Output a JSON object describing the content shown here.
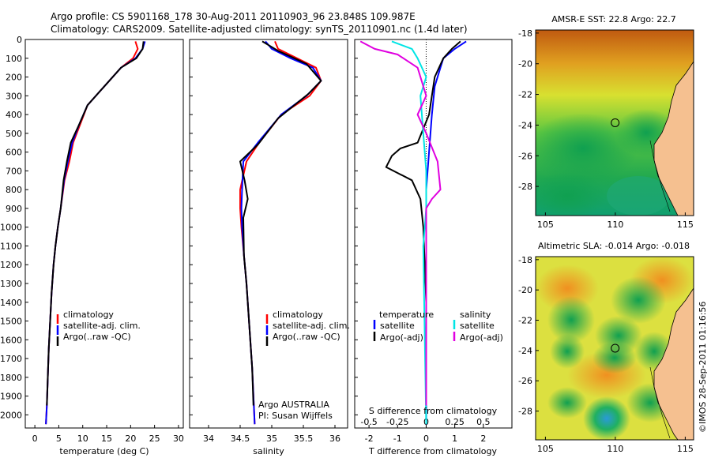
{
  "header": {
    "line1": "Argo profile: CS 5901168_178 30-Aug-2011 20110903_96 23.848S 109.987E",
    "line2": "Climatology: CARS2009. Satellite-adjusted climatology: synTS_20110901.nc (1.4d later)"
  },
  "colors": {
    "climatology": "#ff0000",
    "satellite": "#0000ff",
    "argo": "#000000",
    "sal_satellite": "#00e5e5",
    "sal_argo": "#e000e0"
  },
  "chart_data": [
    {
      "type": "line",
      "id": "temperature",
      "xlabel": "temperature (deg C)",
      "ylabel": "",
      "xlim": [
        -2,
        31
      ],
      "ylim": [
        2070,
        0
      ],
      "grid": false,
      "xticks": [
        "0",
        "5",
        "10",
        "15",
        "20",
        "25",
        "30"
      ],
      "yticks": [
        "0",
        "100",
        "200",
        "300",
        "400",
        "500",
        "600",
        "700",
        "800",
        "900",
        "1000",
        "1100",
        "1200",
        "1300",
        "1400",
        "1500",
        "1600",
        "1700",
        "1800",
        "1900",
        "2000"
      ],
      "legend": [
        "climatology",
        "satellite-adj. clim.",
        "Argo(..raw -QC)"
      ],
      "legend_position": "lower-middle",
      "series": [
        {
          "name": "climatology",
          "color": "#ff0000",
          "x": [
            21,
            21.5,
            20.5,
            18,
            14.5,
            11,
            9.5,
            8,
            7.2,
            6.2,
            5.4,
            4.8,
            4.3,
            3.9,
            3.5,
            3.2,
            2.9,
            2.7,
            2.5,
            2.3
          ],
          "y": [
            10,
            50,
            100,
            150,
            250,
            350,
            450,
            550,
            650,
            750,
            900,
            1000,
            1100,
            1200,
            1350,
            1500,
            1650,
            1800,
            1950,
            2050
          ]
        },
        {
          "name": "satellite-adj. clim.",
          "color": "#0000ff",
          "x": [
            23,
            22.5,
            21,
            18,
            14.5,
            11,
            9.3,
            7.8,
            6.9,
            6.1,
            5.4,
            4.8,
            4.3,
            3.9,
            3.5,
            3.2,
            2.9,
            2.7,
            2.5,
            2.3
          ],
          "y": [
            10,
            50,
            100,
            150,
            250,
            350,
            450,
            550,
            650,
            750,
            900,
            1000,
            1100,
            1200,
            1350,
            1500,
            1650,
            1800,
            1950,
            2050
          ]
        },
        {
          "name": "Argo(..raw -QC)",
          "color": "#000000",
          "x": [
            22.7,
            22.5,
            21.2,
            18,
            14.5,
            11,
            9.3,
            7.5,
            6.7,
            6.0,
            5.4,
            4.8,
            4.3,
            3.9,
            3.5,
            3.2,
            2.9,
            2.7,
            2.5
          ],
          "y": [
            10,
            50,
            100,
            150,
            250,
            350,
            450,
            550,
            650,
            750,
            900,
            1000,
            1100,
            1200,
            1350,
            1500,
            1650,
            1800,
            1950
          ]
        }
      ]
    },
    {
      "type": "line",
      "id": "salinity",
      "xlabel": "salinity",
      "ylabel": "",
      "xlim": [
        33.7,
        36.2
      ],
      "ylim": [
        2070,
        0
      ],
      "grid": false,
      "xticks": [
        "34",
        "34.5",
        "35",
        "35.5",
        "36"
      ],
      "legend": [
        "climatology",
        "satellite-adj. clim.",
        "Argo(..raw -QC)"
      ],
      "legend_position": "lower-right",
      "annotations": [
        "Argo AUSTRALIA",
        "PI: Susan Wijffels"
      ],
      "series": [
        {
          "name": "climatology",
          "color": "#ff0000",
          "x": [
            35.05,
            35.1,
            35.4,
            35.7,
            35.78,
            35.6,
            35.15,
            34.8,
            34.6,
            34.5,
            34.5,
            34.52,
            34.56,
            34.6,
            34.63,
            34.66,
            34.69,
            34.71,
            34.73
          ],
          "y": [
            10,
            50,
            100,
            150,
            220,
            300,
            400,
            550,
            650,
            800,
            900,
            1000,
            1150,
            1300,
            1450,
            1600,
            1750,
            1900,
            2050
          ]
        },
        {
          "name": "satellite-adj. clim.",
          "color": "#0000ff",
          "x": [
            34.9,
            35.0,
            35.3,
            35.65,
            35.78,
            35.55,
            35.15,
            34.78,
            34.55,
            34.53,
            34.52,
            34.53,
            34.56,
            34.6,
            34.63,
            34.66,
            34.69,
            34.71,
            34.73
          ],
          "y": [
            10,
            50,
            100,
            150,
            220,
            300,
            400,
            550,
            650,
            800,
            900,
            1000,
            1150,
            1300,
            1450,
            1600,
            1750,
            1900,
            2050
          ]
        },
        {
          "name": "Argo(..raw -QC)",
          "color": "#000000",
          "x": [
            34.85,
            35.1,
            35.55,
            35.78,
            35.58,
            35.1,
            34.78,
            34.5,
            34.57,
            34.62,
            34.55,
            34.56,
            34.6,
            34.63,
            34.66,
            34.69,
            34.71
          ],
          "y": [
            10,
            60,
            130,
            220,
            290,
            420,
            560,
            650,
            750,
            850,
            950,
            1150,
            1300,
            1450,
            1600,
            1750,
            1950
          ]
        }
      ]
    },
    {
      "type": "line",
      "id": "difference",
      "xlabel": "T difference from climatology",
      "xlabel_top": "S difference from climatology",
      "xlim": [
        -2.5,
        3
      ],
      "ylim": [
        2070,
        0
      ],
      "grid": false,
      "xticks": [
        "-2",
        "-1",
        "0",
        "1",
        "2"
      ],
      "xticks_top": [
        "-0.5",
        "-0.25",
        "0",
        "0.25",
        "0.5"
      ],
      "legend_temperature_title": "temperature",
      "legend_salinity_title": "salinity",
      "legend": [
        "satellite",
        "Argo(-adj)",
        "satellite",
        "Argo(-adj)"
      ],
      "series": [
        {
          "name": "satellite",
          "group": "temperature",
          "color": "#0000ff",
          "x": [
            1.4,
            1.0,
            0.6,
            0.5,
            0.3,
            0.2,
            0.1,
            0.0,
            0.0,
            0.0,
            0.0
          ],
          "y": [
            10,
            50,
            100,
            150,
            250,
            400,
            600,
            800,
            1000,
            1500,
            2050
          ]
        },
        {
          "name": "Argo(-adj)",
          "group": "temperature",
          "color": "#000000",
          "x": [
            1.2,
            0.9,
            0.6,
            0.3,
            0.1,
            -0.3,
            -0.9,
            -1.2,
            -1.4,
            -0.5,
            -0.2,
            -0.1,
            0.0,
            0.0
          ],
          "y": [
            10,
            50,
            100,
            200,
            400,
            550,
            580,
            620,
            680,
            750,
            850,
            1000,
            1400,
            1950
          ]
        },
        {
          "name": "satellite",
          "group": "salinity",
          "color": "#00e5e5",
          "x": [
            -1.2,
            -0.5,
            -0.3,
            0.0,
            -0.2,
            -0.1,
            0.0,
            0.0,
            -0.1,
            0.0
          ],
          "y": [
            10,
            50,
            100,
            200,
            300,
            500,
            700,
            900,
            1100,
            2050
          ]
        },
        {
          "name": "Argo(-adj)",
          "group": "salinity",
          "color": "#e000e0",
          "x": [
            -2.3,
            -1.8,
            -1.0,
            -0.3,
            0.0,
            -0.3,
            0.0,
            0.4,
            0.5,
            0.2,
            0.0,
            0.0
          ],
          "y": [
            10,
            50,
            80,
            150,
            300,
            400,
            500,
            650,
            800,
            850,
            900,
            1950
          ]
        }
      ]
    },
    {
      "type": "heatmap",
      "id": "sst",
      "title": "AMSR-E SST: 22.8 Argo: 22.7",
      "xlim": [
        104.3,
        115.6
      ],
      "ylim": [
        -29.9,
        -17.8
      ],
      "xticks": [
        "105",
        "110",
        "115"
      ],
      "yticks": [
        "-18",
        "-20",
        "-22",
        "-24",
        "-26",
        "-28"
      ],
      "marker": {
        "lon": 109.987,
        "lat": -23.848
      }
    },
    {
      "type": "heatmap",
      "id": "sla",
      "title": "Altimetric SLA: -0.014 Argo: -0.018",
      "xlim": [
        104.3,
        115.6
      ],
      "ylim": [
        -29.9,
        -17.8
      ],
      "xticks": [
        "105",
        "110",
        "115"
      ],
      "yticks": [
        "-18",
        "-20",
        "-22",
        "-24",
        "-26",
        "-28"
      ],
      "marker": {
        "lon": 109.987,
        "lat": -23.848
      }
    }
  ],
  "credit": "©IMOS 28-Sep-2011 01:16:56"
}
